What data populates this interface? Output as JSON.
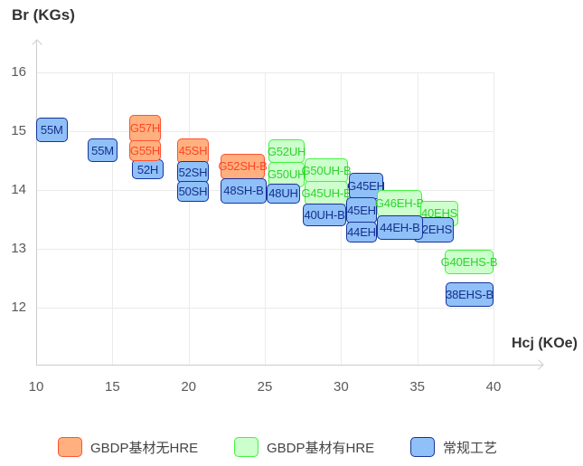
{
  "axes": {
    "y": {
      "title": "Br (KGs)",
      "ticks": [
        "16",
        "15",
        "14",
        "13",
        "12"
      ],
      "tick_values": [
        16,
        15,
        14,
        13,
        12
      ]
    },
    "x": {
      "title": "Hcj (KOe)",
      "ticks": [
        "10",
        "15",
        "20",
        "25",
        "30",
        "35",
        "40"
      ],
      "tick_values": [
        10,
        15,
        20,
        25,
        30,
        35,
        40
      ]
    }
  },
  "legend": [
    {
      "label": "GBDP基材无HRE",
      "series": "orange"
    },
    {
      "label": "GBDP基材有HRE",
      "series": "green"
    },
    {
      "label": "常规工艺",
      "series": "blue"
    }
  ],
  "colors": {
    "orange": {
      "fill": "#FFB07E",
      "border": "#FF5233",
      "text": "#FF4526"
    },
    "green": {
      "fill": "#CCFFCC",
      "border": "#43F23F",
      "text": "#2ED32E"
    },
    "blue": {
      "fill": "#8FC0F7",
      "border": "#17339B",
      "text": "#16308C"
    },
    "grid": "#ebebeb",
    "axis": "#cccccc",
    "tick_text": "#595959",
    "title_text": "#333333",
    "legend_text": "#444444"
  },
  "chart_data": {
    "type": "scatter",
    "title": "",
    "xlabel": "Hcj (KOe)",
    "ylabel": "Br (KGs)",
    "x_axis": {
      "range": [
        10,
        41.5
      ],
      "ticks": [
        10,
        15,
        20,
        25,
        30,
        35,
        40
      ]
    },
    "y_axis": {
      "range": [
        11,
        16.55
      ],
      "ticks": [
        12,
        13,
        14,
        15,
        16
      ]
    },
    "grid": true,
    "legend_position": "bottom",
    "series_legend": {
      "orange": "GBDP基材无HRE",
      "green": "GBDP基材有HRE",
      "blue": "常规工艺"
    },
    "points": [
      {
        "label": "55M",
        "series": "blue",
        "x": [
          10.0,
          12.05
        ],
        "br": [
          14.82,
          15.23
        ]
      },
      {
        "label": "55M",
        "series": "blue",
        "x": [
          13.38,
          15.34
        ],
        "br": [
          14.47,
          14.88
        ]
      },
      {
        "label": "G57H",
        "series": "orange",
        "x": [
          16.11,
          18.18
        ],
        "br": [
          14.82,
          15.28
        ]
      },
      {
        "label": "52H",
        "series": "blue",
        "x": [
          16.28,
          18.36
        ],
        "br": [
          14.18,
          14.52
        ]
      },
      {
        "label": "G55H",
        "series": "orange",
        "x": [
          16.11,
          18.18
        ],
        "br": [
          14.49,
          14.85
        ]
      },
      {
        "label": "45SH",
        "series": "orange",
        "x": [
          19.25,
          21.32
        ],
        "br": [
          14.45,
          14.88
        ]
      },
      {
        "label": "52SH",
        "series": "blue",
        "x": [
          19.25,
          21.32
        ],
        "br": [
          14.12,
          14.49
        ]
      },
      {
        "label": "50SH",
        "series": "blue",
        "x": [
          19.25,
          21.32
        ],
        "br": [
          13.8,
          14.15
        ]
      },
      {
        "label": "G52SH-B",
        "series": "orange",
        "x": [
          22.09,
          25.0
        ],
        "br": [
          14.18,
          14.62
        ]
      },
      {
        "label": "48SH-B",
        "series": "blue",
        "x": [
          22.09,
          25.12
        ],
        "br": [
          13.77,
          14.2
        ]
      },
      {
        "label": "G52UH",
        "series": "green",
        "x": [
          25.24,
          27.61
        ],
        "br": [
          14.46,
          14.86
        ]
      },
      {
        "label": "G50UH",
        "series": "green",
        "x": [
          25.24,
          27.61
        ],
        "br": [
          14.05,
          14.48
        ]
      },
      {
        "label": "48UH",
        "series": "blue",
        "x": [
          25.12,
          27.31
        ],
        "br": [
          13.77,
          14.11
        ]
      },
      {
        "label": "G50UH-B",
        "series": "green",
        "x": [
          27.61,
          30.45
        ],
        "br": [
          14.12,
          14.54
        ]
      },
      {
        "label": "G45UH-B",
        "series": "green",
        "x": [
          27.61,
          30.45
        ],
        "br": [
          13.74,
          14.15
        ]
      },
      {
        "label": "40UH-B",
        "series": "blue",
        "x": [
          27.49,
          30.34
        ],
        "br": [
          13.38,
          13.77
        ]
      },
      {
        "label": "G45EH",
        "series": "blue",
        "x": [
          30.51,
          32.77
        ],
        "br": [
          13.85,
          14.29
        ]
      },
      {
        "label": "45EH",
        "series": "blue",
        "x": [
          30.34,
          32.35
        ],
        "br": [
          13.43,
          13.88
        ]
      },
      {
        "label": "44EH",
        "series": "blue",
        "x": [
          30.34,
          32.35
        ],
        "br": [
          13.11,
          13.46
        ]
      },
      {
        "label": "G46EH-B",
        "series": "green",
        "x": [
          32.35,
          35.31
        ],
        "br": [
          13.54,
          14.0
        ]
      },
      {
        "label": "40EHS",
        "series": "green",
        "x": [
          35.2,
          37.69
        ],
        "br": [
          13.38,
          13.82
        ]
      },
      {
        "label": "42EHS",
        "series": "blue",
        "x": [
          34.78,
          37.39
        ],
        "br": [
          13.11,
          13.54
        ]
      },
      {
        "label": "44EH-B",
        "series": "blue",
        "x": [
          32.35,
          35.37
        ],
        "br": [
          13.15,
          13.57
        ]
      },
      {
        "label": "G40EHS-B",
        "series": "green",
        "x": [
          36.8,
          40.0
        ],
        "br": [
          12.57,
          12.98
        ]
      },
      {
        "label": "38EHS-B",
        "series": "blue",
        "x": [
          36.86,
          40.0
        ],
        "br": [
          12.02,
          12.43
        ]
      }
    ]
  }
}
